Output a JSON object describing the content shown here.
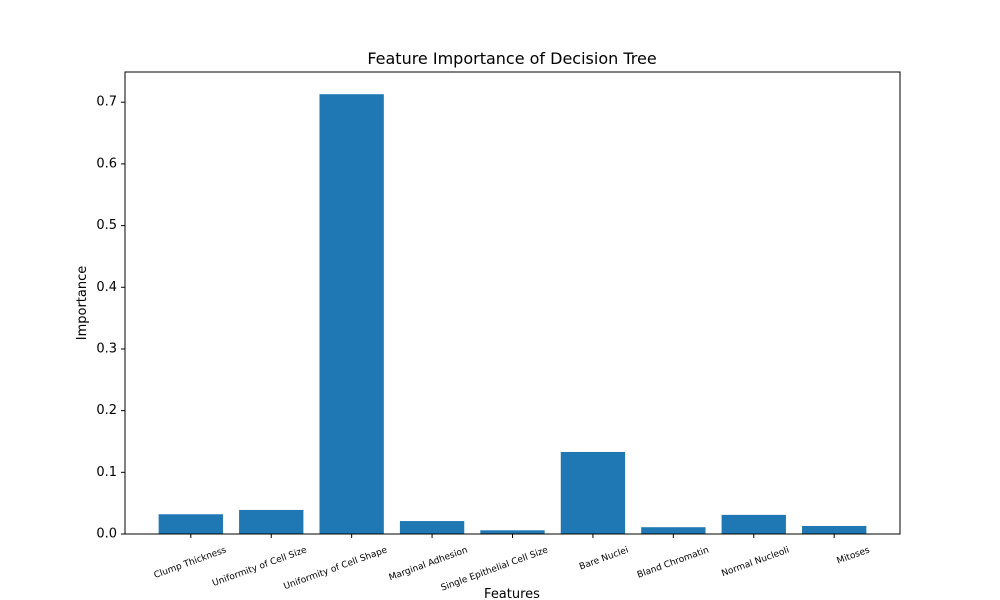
{
  "chart_data": {
    "type": "bar",
    "title": "Feature Importance of Decision Tree",
    "x_label": "Features",
    "y_label": "Importance",
    "categories": [
      "Clump Thickness",
      "Uniformity of Cell Size",
      "Uniformity of Cell Shape",
      "Marginal Adhesion",
      "Single Epithelial Cell Size",
      "Bare Nuclei",
      "Bland Chromatin",
      "Normal Nucleoli",
      "Mitoses"
    ],
    "values": [
      0.032,
      0.039,
      0.713,
      0.021,
      0.006,
      0.133,
      0.011,
      0.031,
      0.013
    ],
    "color": "#1f77b4",
    "ylim": [
      0,
      0.749
    ],
    "yticks": [
      {
        "value": 0,
        "label": "0.0"
      },
      0.1,
      0.2,
      0.3,
      0.4,
      0.5,
      0.6,
      0.7
    ],
    "grid": false
  }
}
